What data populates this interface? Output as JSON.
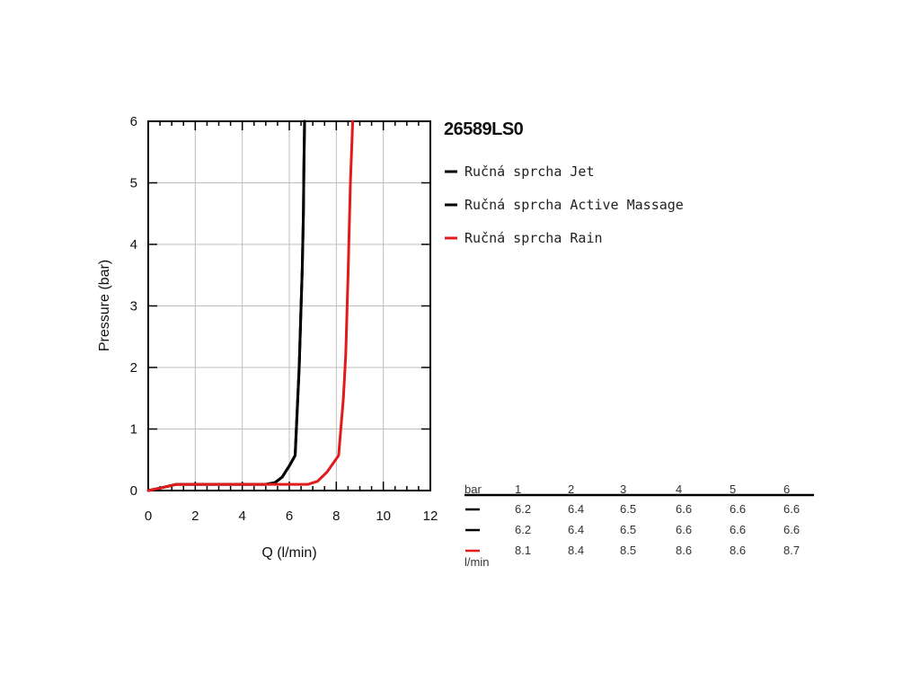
{
  "chart_data": {
    "type": "line",
    "title": "26589LS0",
    "xlabel": "Q (l/min)",
    "ylabel": "Pressure (bar)",
    "xlim": [
      0,
      12
    ],
    "ylim": [
      0,
      6
    ],
    "x_ticks": [
      0,
      2,
      4,
      6,
      8,
      10,
      12
    ],
    "y_ticks": [
      0,
      1,
      2,
      3,
      4,
      5,
      6
    ],
    "grid": true,
    "legend_position": "right",
    "series": [
      {
        "name": "Ručná sprcha Jet",
        "color": "#000000",
        "points": [
          [
            0,
            0
          ],
          [
            0.5,
            0.04
          ],
          [
            1.2,
            0.1
          ],
          [
            5.0,
            0.1
          ],
          [
            5.4,
            0.13
          ],
          [
            5.7,
            0.22
          ],
          [
            6.0,
            0.4
          ],
          [
            6.25,
            0.57
          ],
          [
            6.42,
            2.0
          ],
          [
            6.55,
            3.6
          ],
          [
            6.6,
            4.5
          ],
          [
            6.62,
            5.2
          ],
          [
            6.65,
            6.0
          ]
        ]
      },
      {
        "name": "Ručná sprcha Active Massage",
        "color": "#000000",
        "points": [
          [
            0,
            0
          ],
          [
            0.5,
            0.04
          ],
          [
            1.2,
            0.1
          ],
          [
            5.0,
            0.1
          ],
          [
            5.4,
            0.13
          ],
          [
            5.7,
            0.22
          ],
          [
            6.0,
            0.4
          ],
          [
            6.25,
            0.57
          ],
          [
            6.42,
            2.0
          ],
          [
            6.55,
            3.6
          ],
          [
            6.6,
            4.5
          ],
          [
            6.62,
            5.2
          ],
          [
            6.65,
            6.0
          ]
        ]
      },
      {
        "name": "Ručná sprcha Rain",
        "color": "#e11b1b",
        "points": [
          [
            0,
            0
          ],
          [
            0.5,
            0.04
          ],
          [
            1.2,
            0.1
          ],
          [
            6.8,
            0.1
          ],
          [
            7.2,
            0.15
          ],
          [
            7.6,
            0.3
          ],
          [
            8.1,
            0.57
          ],
          [
            8.3,
            1.5
          ],
          [
            8.4,
            2.2
          ],
          [
            8.5,
            3.5
          ],
          [
            8.6,
            5.0
          ],
          [
            8.7,
            6.0
          ]
        ]
      }
    ],
    "table": {
      "header_label": "bar",
      "footer_label": "l/min",
      "columns": [
        "1",
        "2",
        "3",
        "4",
        "5",
        "6"
      ],
      "rows": [
        {
          "color": "#000000",
          "values": [
            "6.2",
            "6.4",
            "6.5",
            "6.6",
            "6.6",
            "6.6"
          ]
        },
        {
          "color": "#000000",
          "values": [
            "6.2",
            "6.4",
            "6.5",
            "6.6",
            "6.6",
            "6.6"
          ]
        },
        {
          "color": "#e11b1b",
          "values": [
            "8.1",
            "8.4",
            "8.5",
            "8.6",
            "8.6",
            "8.7"
          ]
        }
      ]
    }
  }
}
